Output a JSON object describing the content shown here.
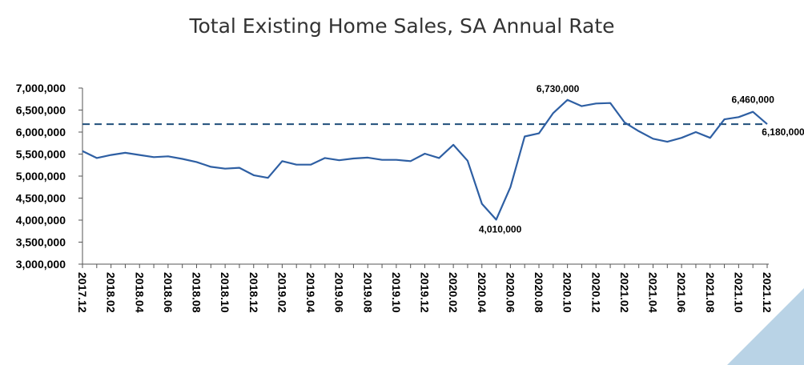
{
  "chart_data": {
    "type": "line",
    "title": "Total Existing Home Sales, SA Annual Rate",
    "xlabel": "",
    "ylabel": "",
    "ylim": [
      3000000,
      7000000
    ],
    "y_ticks": [
      "3,000,000",
      "3,500,000",
      "4,000,000",
      "4,500,000",
      "5,000,000",
      "5,500,000",
      "6,000,000",
      "6,500,000",
      "7,000,000"
    ],
    "x_tick_labels": [
      "2017.12",
      "2018.02",
      "2018.04",
      "2018.06",
      "2018.08",
      "2018.10",
      "2018.12",
      "2019.02",
      "2019.04",
      "2019.06",
      "2019.08",
      "2019.10",
      "2019.12",
      "2020.02",
      "2020.04",
      "2020.06",
      "2020.08",
      "2020.10",
      "2020.12",
      "2021.02",
      "2021.04",
      "2021.06",
      "2021.08",
      "2021.10",
      "2021.12"
    ],
    "series": [
      {
        "values": [
          5570000,
          5410000,
          5480000,
          5530000,
          5480000,
          5430000,
          5450000,
          5390000,
          5320000,
          5210000,
          5170000,
          5190000,
          5020000,
          4960000,
          5340000,
          5260000,
          5260000,
          5410000,
          5360000,
          5400000,
          5420000,
          5370000,
          5370000,
          5340000,
          5510000,
          5410000,
          5710000,
          5350000,
          4370000,
          4010000,
          4750000,
          5900000,
          5970000,
          6430000,
          6730000,
          6590000,
          6650000,
          6660000,
          6220000,
          6020000,
          5850000,
          5780000,
          5870000,
          6000000,
          5870000,
          6290000,
          6340000,
          6460000,
          6180000
        ],
        "color": "#2e5fa3"
      }
    ],
    "reference_line": {
      "value": 6180000,
      "style": "dashed",
      "color": "#1f4e79"
    },
    "annotations": [
      {
        "label": "6,730,000",
        "index": 34
      },
      {
        "label": "4,010,000",
        "index": 29
      },
      {
        "label": "6,460,000",
        "index": 47
      },
      {
        "label": "6,180,000",
        "index": 48
      }
    ]
  },
  "colors": {
    "axis": "#555555",
    "corner_accent": "#b9d3e6"
  }
}
